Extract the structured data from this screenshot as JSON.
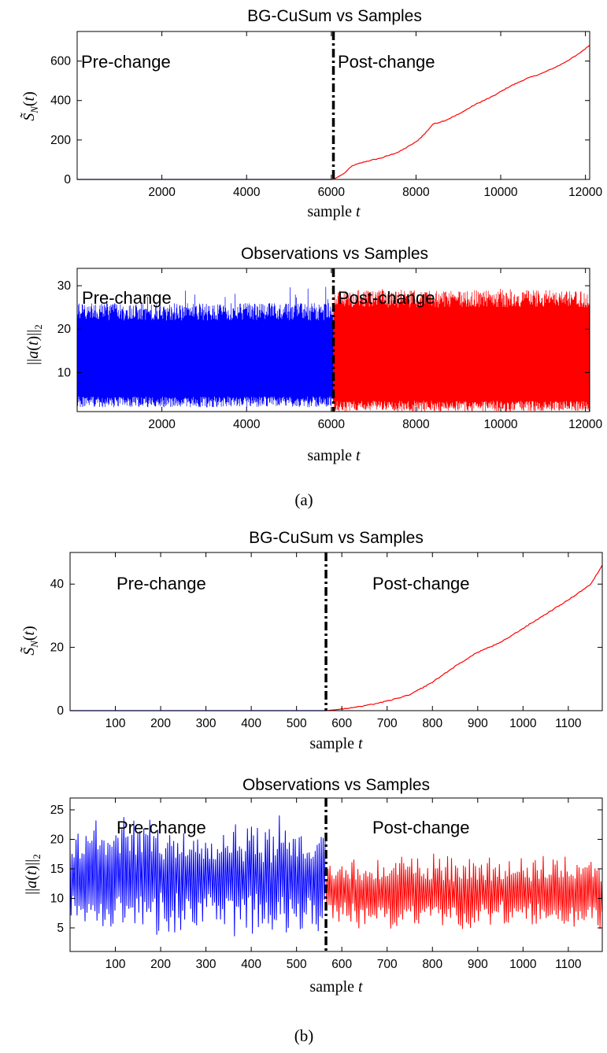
{
  "figure": {
    "captions": [
      "(a)",
      "(b)"
    ],
    "colors": {
      "pre": "#0000ff",
      "post": "#ff0000",
      "change_line": "#000000"
    }
  },
  "chart_data": [
    {
      "type": "line",
      "title": "BG-CuSum vs Samples",
      "xlabel": "sample t",
      "ylabel": "S̃_N(t)",
      "xlim": [
        0,
        12100
      ],
      "ylim": [
        0,
        750
      ],
      "xticks": [
        2000,
        4000,
        6000,
        8000,
        10000,
        12000
      ],
      "yticks": [
        0,
        200,
        400,
        600
      ],
      "change_point": 6050,
      "annotations": [
        "Pre-change",
        "Post-change"
      ],
      "series": [
        {
          "color": "#0000ff",
          "x": [
            0,
            6050
          ],
          "y": [
            0,
            0
          ]
        },
        {
          "color": "#ff0000",
          "x": [
            6050,
            6300,
            6500,
            6800,
            7200,
            7600,
            8000,
            8200,
            8400,
            8700,
            9000,
            9400,
            9800,
            10200,
            10600,
            11000,
            11400,
            11800,
            12100
          ],
          "y": [
            0,
            30,
            70,
            90,
            110,
            140,
            190,
            230,
            280,
            300,
            330,
            380,
            420,
            470,
            510,
            540,
            580,
            630,
            680
          ]
        }
      ]
    },
    {
      "type": "line",
      "title": "Observations vs Samples",
      "xlabel": "sample t",
      "ylabel": "||a(t)||_2",
      "xlim": [
        0,
        12100
      ],
      "ylim": [
        1,
        34
      ],
      "xticks": [
        2000,
        4000,
        6000,
        8000,
        10000,
        12000
      ],
      "yticks": [
        10,
        20,
        30
      ],
      "change_point": 6050,
      "annotations": [
        "Pre-change",
        "Post-change"
      ],
      "series": [
        {
          "color": "#0000ff",
          "x": [
            0,
            6050
          ],
          "y": [
            2,
            24
          ],
          "band": true,
          "peak": 30
        },
        {
          "color": "#ff0000",
          "x": [
            6050,
            12100
          ],
          "y": [
            1,
            27
          ],
          "band": true,
          "peak": 28
        }
      ]
    },
    {
      "type": "line",
      "title": "BG-CuSum vs Samples",
      "xlabel": "sample t",
      "ylabel": "S̃_N(t)",
      "xlim": [
        0,
        1175
      ],
      "ylim": [
        0,
        50
      ],
      "xticks": [
        100,
        200,
        300,
        400,
        500,
        600,
        700,
        800,
        900,
        1000,
        1100
      ],
      "yticks": [
        0,
        20,
        40
      ],
      "change_point": 565,
      "annotations": [
        "Pre-change",
        "Post-change"
      ],
      "series": [
        {
          "color": "#0000ff",
          "x": [
            0,
            565
          ],
          "y": [
            0,
            0
          ]
        },
        {
          "color": "#ff0000",
          "x": [
            565,
            600,
            650,
            700,
            750,
            800,
            850,
            900,
            950,
            1000,
            1050,
            1100,
            1150,
            1175
          ],
          "y": [
            0,
            0.5,
            1.5,
            3,
            5,
            9,
            14,
            18.5,
            21.5,
            26,
            30.5,
            35,
            40,
            46
          ]
        }
      ]
    },
    {
      "type": "line",
      "title": "Observations vs Samples",
      "xlabel": "sample t",
      "ylabel": "||a(t)||_2",
      "xlim": [
        0,
        1175
      ],
      "ylim": [
        1,
        27
      ],
      "xticks": [
        100,
        200,
        300,
        400,
        500,
        600,
        700,
        800,
        900,
        1000,
        1100
      ],
      "yticks": [
        5,
        10,
        15,
        20,
        25
      ],
      "change_point": 565,
      "annotations": [
        "Pre-change",
        "Post-change"
      ],
      "series": [
        {
          "color": "#0000ff",
          "x": [
            0,
            565
          ],
          "y": [
            2.5,
            24.5
          ],
          "oscillating": true
        },
        {
          "color": "#ff0000",
          "x": [
            565,
            1175
          ],
          "y": [
            4,
            18
          ],
          "oscillating": true
        }
      ]
    }
  ]
}
